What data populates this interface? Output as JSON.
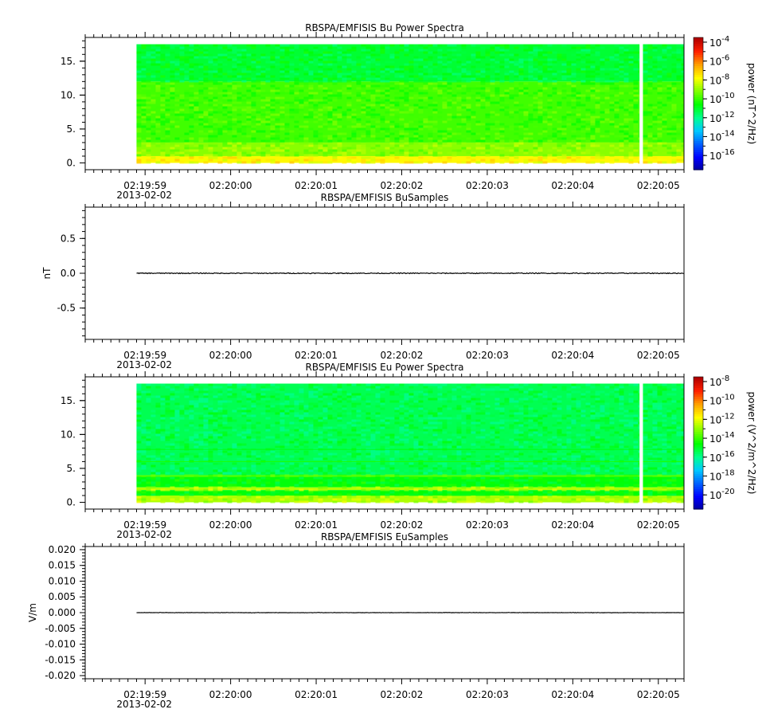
{
  "chart_data": [
    {
      "type": "heatmap",
      "title": "RBSPA/EMFISIS  Bu Power Spectra",
      "ylabel": "",
      "ylim": [
        -1.0,
        18.5
      ],
      "yticks": [
        {
          "value": 0,
          "label": "0."
        },
        {
          "value": 5,
          "label": "5."
        },
        {
          "value": 10,
          "label": "10."
        },
        {
          "value": 15,
          "label": "15."
        }
      ],
      "x_range": [
        "02:19:58.3",
        "02:20:05.3"
      ],
      "data_start": "02:19:58.9",
      "gap": [
        "02:20:04.78",
        "02:20:04.82"
      ],
      "z_scale": "log",
      "zlabel": "power (nT^2/Hz)",
      "zlim_exp": [
        -17.5,
        -3.5
      ],
      "zticks_exp": [
        -4,
        -6,
        -8,
        -10,
        -12,
        -14,
        -16
      ],
      "bands": [
        {
          "y": [
            12.0,
            17.5
          ],
          "power_exp": -11
        },
        {
          "y": [
            3.0,
            12.0
          ],
          "power_exp": -9.8
        },
        {
          "y": [
            1.0,
            3.0
          ],
          "power_exp": -9.0
        },
        {
          "y": [
            0.0,
            1.0
          ],
          "power_exp": -7.6
        }
      ]
    },
    {
      "type": "line",
      "title": "RBSPA/EMFISIS  BuSamples",
      "ylabel": "nT",
      "ylim": [
        -0.95,
        0.95
      ],
      "yticks": [
        {
          "value": 0.5,
          "label": "0.5"
        },
        {
          "value": 0,
          "label": "0.0"
        },
        {
          "value": -0.5,
          "label": "-0.5"
        }
      ],
      "x_range": [
        "02:19:58.3",
        "02:20:05.3"
      ],
      "data_start": "02:19:58.9",
      "value": 0.0,
      "noise": 0.006
    },
    {
      "type": "heatmap",
      "title": "RBSPA/EMFISIS  Eu Power Spectra",
      "ylabel": "",
      "ylim": [
        -1.0,
        18.5
      ],
      "yticks": [
        {
          "value": 0,
          "label": "0."
        },
        {
          "value": 5,
          "label": "5."
        },
        {
          "value": 10,
          "label": "10."
        },
        {
          "value": 15,
          "label": "15."
        }
      ],
      "x_range": [
        "02:19:58.3",
        "02:20:05.3"
      ],
      "data_start": "02:19:58.9",
      "gap": [
        "02:20:04.78",
        "02:20:04.82"
      ],
      "z_scale": "log",
      "zlabel": "power (V^2/m^2/Hz)",
      "zlim_exp": [
        -21.5,
        -7.5
      ],
      "zticks_exp": [
        -8,
        -10,
        -12,
        -14,
        -16,
        -18,
        -20
      ],
      "bands": [
        {
          "y": [
            4.0,
            17.5
          ],
          "power_exp": -15.3
        },
        {
          "y": [
            3.7,
            4.0
          ],
          "power_exp": -13.8
        },
        {
          "y": [
            2.2,
            3.7
          ],
          "power_exp": -14.6
        },
        {
          "y": [
            1.8,
            2.2
          ],
          "power_exp": -12.6
        },
        {
          "y": [
            1.0,
            1.8
          ],
          "power_exp": -14.6
        },
        {
          "y": [
            0.0,
            1.0
          ],
          "power_exp": -12.6
        }
      ],
      "lines": [
        {
          "y": 6.0,
          "power_exp": -14.2
        },
        {
          "y": 7.8,
          "power_exp": -14.6
        },
        {
          "y": 3.9,
          "power_exp": -13.6
        }
      ]
    },
    {
      "type": "line",
      "title": "RBSPA/EMFISIS  EuSamples",
      "ylabel": "V/m",
      "ylim": [
        -0.021,
        0.021
      ],
      "yticks": [
        {
          "value": 0.02,
          "label": "0.020"
        },
        {
          "value": 0.015,
          "label": "0.015"
        },
        {
          "value": 0.01,
          "label": "0.010"
        },
        {
          "value": 0.005,
          "label": "0.005"
        },
        {
          "value": 0,
          "label": "0.000"
        },
        {
          "value": -0.005,
          "label": "-0.005"
        },
        {
          "value": -0.01,
          "label": "-0.010"
        },
        {
          "value": -0.015,
          "label": "-0.015"
        },
        {
          "value": -0.02,
          "label": "-0.020"
        }
      ],
      "x_range": [
        "02:19:58.3",
        "02:20:05.3"
      ],
      "data_start": "02:19:58.9",
      "value": 0.0,
      "noise": 8e-05
    }
  ],
  "x_axis": {
    "tick_labels": [
      "02:19:59",
      "02:20:00",
      "02:20:01",
      "02:20:02",
      "02:20:03",
      "02:20:04",
      "02:20:05"
    ],
    "date_label": "2013-02-02"
  },
  "colors": {
    "colormap": [
      "#00009a",
      "#0000ff",
      "#0060ff",
      "#00c8ff",
      "#00ff90",
      "#00ff00",
      "#80ff00",
      "#ffff00",
      "#ffa000",
      "#ff2000",
      "#b00000"
    ],
    "line": "#000000"
  }
}
